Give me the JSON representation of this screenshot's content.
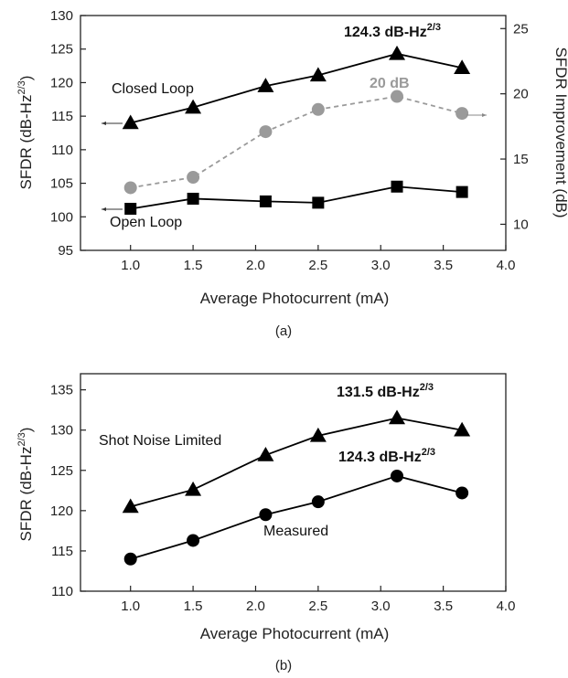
{
  "chart_data": [
    {
      "panel_label": "(a)",
      "type": "line",
      "xlabel": "Average Photocurrent (mA)",
      "ylabel_main": "SFDR (dB-Hz",
      "ylabel_exp": "2/3",
      "ylabel_close": ")",
      "y2label": "SFDR Improvement (dB)",
      "xlim": [
        0.6,
        4.0
      ],
      "ylim": [
        95,
        130
      ],
      "y2lim": [
        8,
        26
      ],
      "xticks": [
        "1.0",
        "1.5",
        "2.0",
        "2.5",
        "3.0",
        "3.5",
        "4.0"
      ],
      "yticks": [
        "95",
        "100",
        "105",
        "110",
        "115",
        "120",
        "125",
        "130"
      ],
      "y2ticks": [
        "10",
        "15",
        "20",
        "25"
      ],
      "grid": false,
      "series": [
        {
          "name": "Closed Loop",
          "axis": "left",
          "marker": "triangle",
          "color": "#000000",
          "line": "solid",
          "x": [
            1.0,
            1.5,
            2.08,
            2.5,
            3.13,
            3.65
          ],
          "y": [
            114.0,
            116.3,
            119.5,
            121.1,
            124.3,
            122.2
          ]
        },
        {
          "name": "Open Loop",
          "axis": "left",
          "marker": "square",
          "color": "#000000",
          "line": "solid",
          "x": [
            1.0,
            1.5,
            2.08,
            2.5,
            3.13,
            3.65
          ],
          "y": [
            101.2,
            102.7,
            102.3,
            102.1,
            104.5,
            103.7
          ]
        },
        {
          "name": "",
          "axis": "right",
          "marker": "circle",
          "color": "#9a9a9a",
          "line": "dashed",
          "x": [
            1.0,
            1.5,
            2.08,
            2.5,
            3.13,
            3.65
          ],
          "y": [
            12.8,
            13.6,
            17.1,
            18.8,
            19.8,
            18.5
          ]
        }
      ],
      "annotations": {
        "peak_main": "124.3 dB-Hz",
        "peak_exp": "2/3",
        "improvement": "20 dB",
        "closed_loop": "Closed Loop",
        "open_loop": "Open Loop"
      }
    },
    {
      "panel_label": "(b)",
      "type": "line",
      "xlabel": "Average Photocurrent (mA)",
      "ylabel_main": "SFDR (dB-Hz",
      "ylabel_exp": "2/3",
      "ylabel_close": ")",
      "xlim": [
        0.6,
        4.0
      ],
      "ylim": [
        110,
        137
      ],
      "xticks": [
        "1.0",
        "1.5",
        "2.0",
        "2.5",
        "3.0",
        "3.5",
        "4.0"
      ],
      "yticks": [
        "110",
        "115",
        "120",
        "125",
        "130",
        "135"
      ],
      "grid": false,
      "series": [
        {
          "name": "Shot Noise Limited",
          "marker": "triangle",
          "color": "#000000",
          "line": "solid",
          "x": [
            1.0,
            1.5,
            2.08,
            2.5,
            3.13,
            3.65
          ],
          "y": [
            120.5,
            122.6,
            126.9,
            129.3,
            131.5,
            130.0
          ]
        },
        {
          "name": "Measured",
          "marker": "circle",
          "color": "#000000",
          "line": "solid",
          "x": [
            1.0,
            1.5,
            2.08,
            2.5,
            3.13,
            3.65
          ],
          "y": [
            114.0,
            116.3,
            119.5,
            121.1,
            124.3,
            122.2
          ]
        }
      ],
      "annotations": {
        "peak_top_main": "131.5 dB-Hz",
        "peak_top_exp": "2/3",
        "peak_bottom_main": "124.3 dB-Hz",
        "peak_bottom_exp": "2/3",
        "shot_noise": "Shot Noise Limited",
        "measured": "Measured"
      }
    }
  ]
}
